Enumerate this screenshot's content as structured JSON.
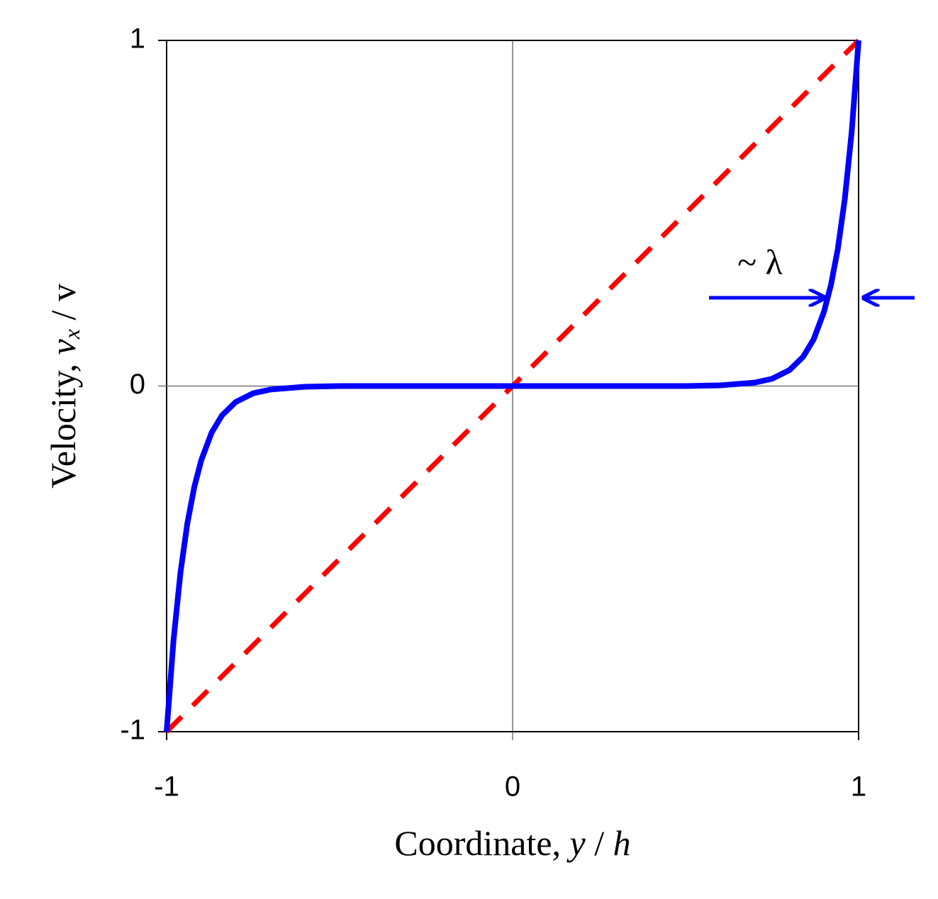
{
  "chart_data": {
    "type": "line",
    "x_label": [
      "Coordinate, ",
      "y",
      " / ",
      "h"
    ],
    "y_label": [
      "Velocity, ",
      "v",
      "x",
      " / v"
    ],
    "annotation": "~ λ",
    "xlim": [
      -1,
      1
    ],
    "ylim": [
      -1,
      1
    ],
    "xticks": [
      -1,
      0,
      1
    ],
    "yticks": [
      -1,
      0,
      1
    ],
    "series": [
      {
        "color": "#0000ff",
        "dashed": false,
        "x": [
          -1,
          -0.98,
          -0.96,
          -0.94,
          -0.92,
          -0.9,
          -0.87,
          -0.84,
          -0.8,
          -0.75,
          -0.7,
          -0.6,
          -0.5,
          0,
          0.5,
          0.6,
          0.7,
          0.75,
          0.8,
          0.84,
          0.87,
          0.9,
          0.92,
          0.94,
          0.96,
          0.98,
          1
        ],
        "values": [
          -1,
          -0.735,
          -0.54,
          -0.397,
          -0.292,
          -0.215,
          -0.135,
          -0.085,
          -0.046,
          -0.021,
          -0.01,
          -0.002,
          0,
          0,
          0,
          0.002,
          0.01,
          0.021,
          0.046,
          0.085,
          0.135,
          0.215,
          0.292,
          0.397,
          0.54,
          0.735,
          1
        ]
      },
      {
        "color": "#ff0000",
        "dashed": true,
        "x": [
          -1,
          1
        ],
        "values": [
          -1,
          1
        ]
      }
    ]
  }
}
